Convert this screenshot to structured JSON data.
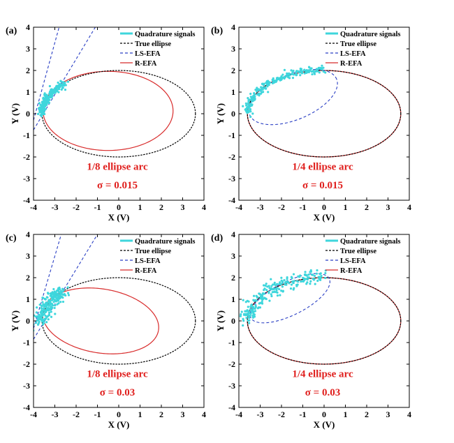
{
  "colors": {
    "quadrature": "#3ed6dc",
    "true_ellipse": "#000000",
    "ls_efa": "#2a3fc4",
    "r_efa": "#d82a2a",
    "annotation": "#e0201e"
  },
  "chart_data": [
    {
      "type": "line",
      "panel_label": "(a)",
      "xlabel": "X (V)",
      "ylabel": "Y (V)",
      "xlim": [
        -4,
        4
      ],
      "ylim": [
        -4,
        4
      ],
      "xticks": [
        "-4",
        "-3",
        "-2",
        "-1",
        "0",
        "1",
        "2",
        "3",
        "4"
      ],
      "yticks": [
        "-4",
        "-3",
        "-2",
        "-1",
        "0",
        "1",
        "2",
        "3",
        "4"
      ],
      "legend": [
        "Quadrature signals",
        "True ellipse",
        "LS-EFA",
        "R-EFA"
      ],
      "legend_position": "top-right",
      "annotation_line1": "1/8 ellipse arc",
      "annotation_line2": "σ = 0.015",
      "noise_sigma": 0.015,
      "series": [
        {
          "name": "Quadrature signals",
          "arc_start_deg": 180,
          "arc_end_deg": 135,
          "center": [
            0,
            0
          ],
          "rx": 3.6,
          "ry": 2.0
        },
        {
          "name": "True ellipse",
          "center": [
            0,
            0
          ],
          "rx": 3.6,
          "ry": 2.0
        },
        {
          "name": "LS-EFA",
          "hyperbola_branches": [
            {
              "from": [
                -4.0,
                -0.75
              ],
              "to": [
                -1.1,
                4.0
              ]
            },
            {
              "from": [
                -4.0,
                -0.3
              ],
              "to": [
                -2.8,
                4.0
              ]
            }
          ]
        },
        {
          "name": "R-EFA",
          "center": [
            -0.5,
            0.13
          ],
          "rx": 3.05,
          "ry": 1.83
        }
      ]
    },
    {
      "type": "line",
      "panel_label": "(b)",
      "xlabel": "X (V)",
      "ylabel": "Y (V)",
      "xlim": [
        -4,
        4
      ],
      "ylim": [
        -4,
        4
      ],
      "xticks": [
        "-4",
        "-3",
        "-2",
        "-1",
        "0",
        "1",
        "2",
        "3",
        "4"
      ],
      "yticks": [
        "-4",
        "-3",
        "-2",
        "-1",
        "0",
        "1",
        "2",
        "3",
        "4"
      ],
      "legend": [
        "Quadrature signals",
        "True ellipse",
        "LS-EFA",
        "R-EFA"
      ],
      "legend_position": "top-right",
      "annotation_line1": "1/4 ellipse arc",
      "annotation_line2": "σ = 0.015",
      "noise_sigma": 0.015,
      "series": [
        {
          "name": "Quadrature signals",
          "arc_start_deg": 180,
          "arc_end_deg": 90,
          "center": [
            0,
            0
          ],
          "rx": 3.6,
          "ry": 2.0
        },
        {
          "name": "True ellipse",
          "center": [
            0,
            0
          ],
          "rx": 3.6,
          "ry": 2.0
        },
        {
          "name": "LS-EFA",
          "center": [
            -1.45,
            0.77
          ],
          "rx": 2.2,
          "ry": 1.05,
          "tilt_deg": 22
        },
        {
          "name": "R-EFA",
          "center": [
            0,
            0
          ],
          "rx": 3.6,
          "ry": 2.0
        }
      ]
    },
    {
      "type": "line",
      "panel_label": "(c)",
      "xlabel": "X (V)",
      "ylabel": "Y (V)",
      "xlim": [
        -4,
        4
      ],
      "ylim": [
        -4,
        4
      ],
      "xticks": [
        "-4",
        "-3",
        "-2",
        "-1",
        "0",
        "1",
        "2",
        "3",
        "4"
      ],
      "yticks": [
        "-4",
        "-3",
        "-2",
        "-1",
        "0",
        "1",
        "2",
        "3",
        "4"
      ],
      "legend": [
        "Quadrature signals",
        "True ellipse",
        "LS-EFA",
        "R-EFA"
      ],
      "legend_position": "top-right",
      "annotation_line1": "1/8 ellipse arc",
      "annotation_line2": "σ = 0.03",
      "noise_sigma": 0.03,
      "series": [
        {
          "name": "Quadrature signals",
          "arc_start_deg": 180,
          "arc_end_deg": 135,
          "center": [
            0,
            0
          ],
          "rx": 3.6,
          "ry": 2.0
        },
        {
          "name": "True ellipse",
          "center": [
            0,
            0
          ],
          "rx": 3.6,
          "ry": 2.0
        },
        {
          "name": "LS-EFA",
          "hyperbola_branches": [
            {
              "from": [
                -4.0,
                -0.85
              ],
              "to": [
                -1.0,
                4.0
              ]
            },
            {
              "from": [
                -4.0,
                -0.35
              ],
              "to": [
                -2.7,
                4.0
              ]
            }
          ]
        },
        {
          "name": "R-EFA",
          "center": [
            -0.85,
            0.0
          ],
          "rx": 2.75,
          "ry": 1.48,
          "tilt_deg": -9
        }
      ]
    },
    {
      "type": "line",
      "panel_label": "(d)",
      "xlabel": "X (V)",
      "ylabel": "Y (V)",
      "xlim": [
        -4,
        4
      ],
      "ylim": [
        -4,
        4
      ],
      "xticks": [
        "-4",
        "-3",
        "-2",
        "-1",
        "0",
        "1",
        "2",
        "3",
        "4"
      ],
      "yticks": [
        "-4",
        "-3",
        "-2",
        "-1",
        "0",
        "1",
        "2",
        "3",
        "4"
      ],
      "legend": [
        "Quadrature signals",
        "True ellipse",
        "LS-EFA",
        "R-EFA"
      ],
      "legend_position": "top-right",
      "annotation_line1": "1/4 ellipse arc",
      "annotation_line2": "σ = 0.03",
      "noise_sigma": 0.03,
      "series": [
        {
          "name": "Quadrature signals",
          "arc_start_deg": 180,
          "arc_end_deg": 90,
          "center": [
            0,
            0
          ],
          "rx": 3.6,
          "ry": 2.0
        },
        {
          "name": "True ellipse",
          "center": [
            0,
            0
          ],
          "rx": 3.6,
          "ry": 2.0
        },
        {
          "name": "LS-EFA",
          "center": [
            -1.6,
            1.05
          ],
          "rx": 2.05,
          "ry": 0.78,
          "tilt_deg": 26
        },
        {
          "name": "R-EFA",
          "center": [
            0,
            0
          ],
          "rx": 3.6,
          "ry": 2.0
        }
      ]
    }
  ]
}
